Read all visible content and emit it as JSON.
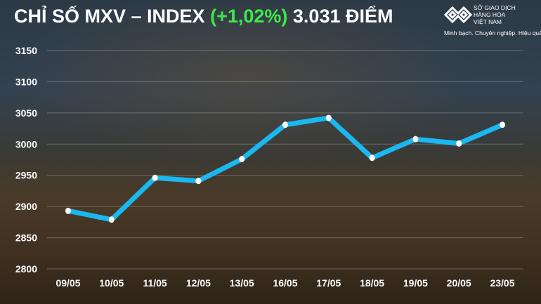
{
  "header": {
    "title_prefix": "CHỈ SỐ MXV – INDEX",
    "change": "(+1,02%)",
    "value_text": "3.031 ĐIỂM",
    "change_color": "#3ee84a"
  },
  "logo": {
    "name_lines": [
      "SỞ GIAO DỊCH",
      "HÀNG HÓA",
      "VIỆT NAM"
    ],
    "slogan": "Minh bạch. Chuyên nghiệp. Hiệu quả"
  },
  "chart_data": {
    "type": "line",
    "title": "",
    "xlabel": "",
    "ylabel": "",
    "categories": [
      "09/05",
      "10/05",
      "11/05",
      "12/05",
      "13/05",
      "16/05",
      "17/05",
      "18/05",
      "19/05",
      "20/05",
      "23/05"
    ],
    "values": [
      2893,
      2879,
      2946,
      2941,
      2976,
      3031,
      3042,
      2978,
      3008,
      3001,
      3031
    ],
    "ylim": [
      2800,
      3150
    ],
    "yticks": [
      2800,
      2850,
      2900,
      2950,
      3000,
      3050,
      3100,
      3150
    ],
    "grid": true,
    "line_color": "#1ab8f0",
    "marker_color": "#ffffff"
  }
}
